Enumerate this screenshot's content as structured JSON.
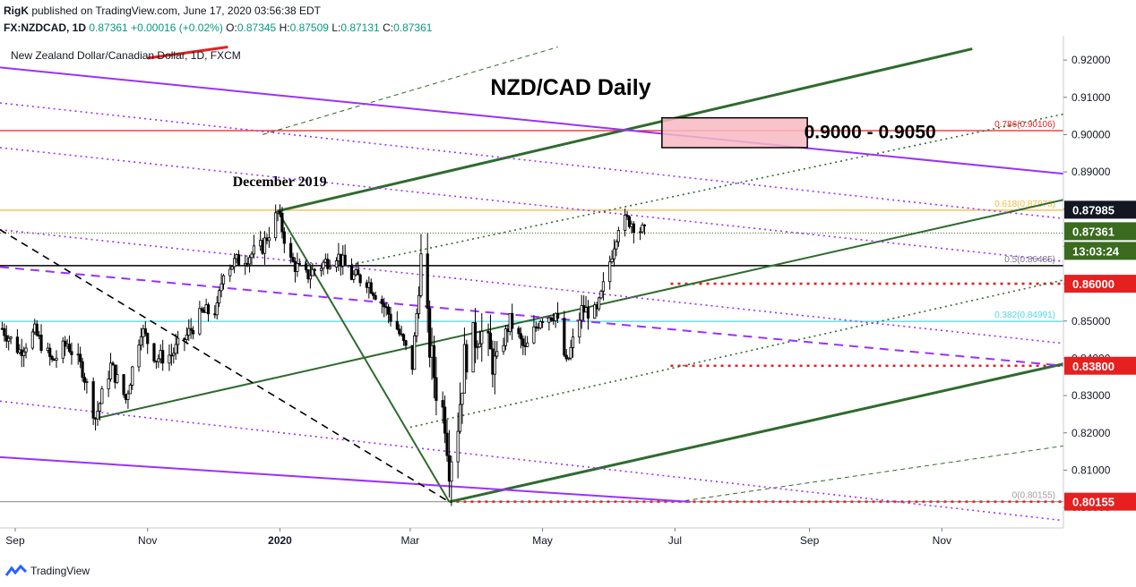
{
  "header": {
    "publisher_name": "RigK",
    "published_text": " published on TradingView.com, June 17, 2020 03:56:38 EDT",
    "symbol": "FX:NZDCAD, 1D",
    "last": "0.87361",
    "change": "+0.00016 (+0.02%)",
    "o_label": "O:",
    "o": "0.87345",
    "h_label": "H:",
    "h": "0.87509",
    "l_label": "L:",
    "l": "0.87131",
    "c_label": "C:",
    "c": "0.87361"
  },
  "footer": {
    "brand": "TradingView",
    "logo_icon": "tradingview-logo-icon"
  },
  "colors": {
    "green": "#2e6b2e",
    "purple": "#9b30ff",
    "red": "#e5201f",
    "orange": "#f5b942",
    "cyan": "#4dd8e0",
    "gray": "#9e9e9e",
    "price_box": "#131722",
    "last_box": "#3a6b1f"
  },
  "chart_data": {
    "type": "candlestick",
    "title": "NZD/CAD Daily",
    "subtitle": "New Zealand Dollar/Canadian Dollar, 1D, FXCM",
    "ylim": [
      0.7945,
      0.9265
    ],
    "y_ticks": [
      "0.92000",
      "0.91000",
      "0.90000",
      "0.89000",
      "0.88000",
      "0.87000",
      "0.86000",
      "0.85000",
      "0.84000",
      "0.83000",
      "0.82000",
      "0.81000",
      "0.80000"
    ],
    "y_tick_values": [
      0.92,
      0.91,
      0.9,
      0.89,
      0.88,
      0.87,
      0.86,
      0.85,
      0.84,
      0.83,
      0.82,
      0.81,
      0.8
    ],
    "x_ticks": [
      {
        "label": "Sep",
        "date": "2019-09-01"
      },
      {
        "label": "Nov",
        "date": "2019-11-01"
      },
      {
        "label": "2020",
        "date": "2020-01-01"
      },
      {
        "label": "Mar",
        "date": "2020-03-01"
      },
      {
        "label": "May",
        "date": "2020-05-01"
      },
      {
        "label": "Jul",
        "date": "2020-07-01"
      },
      {
        "label": "Sep",
        "date": "2020-09-01"
      },
      {
        "label": "Nov",
        "date": "2020-11-01"
      }
    ],
    "x_range": [
      "2019-08-25",
      "2020-12-27"
    ],
    "price_path": [
      [
        "2019-08-26",
        0.848
      ],
      [
        "2019-09-03",
        0.842
      ],
      [
        "2019-09-10",
        0.847
      ],
      [
        "2019-09-18",
        0.839
      ],
      [
        "2019-09-25",
        0.844
      ],
      [
        "2019-10-02",
        0.837
      ],
      [
        "2019-10-08",
        0.824
      ],
      [
        "2019-10-15",
        0.838
      ],
      [
        "2019-10-22",
        0.829
      ],
      [
        "2019-10-29",
        0.848
      ],
      [
        "2019-11-05",
        0.84
      ],
      [
        "2019-11-12",
        0.841
      ],
      [
        "2019-11-19",
        0.846
      ],
      [
        "2019-11-26",
        0.852
      ],
      [
        "2019-12-03",
        0.853
      ],
      [
        "2019-12-06",
        0.864
      ],
      [
        "2019-12-12",
        0.866
      ],
      [
        "2019-12-19",
        0.868
      ],
      [
        "2019-12-24",
        0.87
      ],
      [
        "2019-12-31",
        0.879
      ],
      [
        "2020-01-06",
        0.866
      ],
      [
        "2020-01-13",
        0.862
      ],
      [
        "2020-01-20",
        0.865
      ],
      [
        "2020-01-27",
        0.868
      ],
      [
        "2020-02-03",
        0.862
      ],
      [
        "2020-02-10",
        0.861
      ],
      [
        "2020-02-17",
        0.855
      ],
      [
        "2020-02-24",
        0.848
      ],
      [
        "2020-03-02",
        0.838
      ],
      [
        "2020-03-06",
        0.866
      ],
      [
        "2020-03-10",
        0.843
      ],
      [
        "2020-03-13",
        0.832
      ],
      [
        "2020-03-17",
        0.824
      ],
      [
        "2020-03-19",
        0.812
      ],
      [
        "2020-03-23",
        0.823
      ],
      [
        "2020-03-26",
        0.84
      ],
      [
        "2020-04-02",
        0.848
      ],
      [
        "2020-04-09",
        0.838
      ],
      [
        "2020-04-16",
        0.85
      ],
      [
        "2020-04-23",
        0.842
      ],
      [
        "2020-04-30",
        0.851
      ],
      [
        "2020-05-07",
        0.852
      ],
      [
        "2020-05-12",
        0.838
      ],
      [
        "2020-05-19",
        0.853
      ],
      [
        "2020-05-26",
        0.852
      ],
      [
        "2020-06-01",
        0.866
      ],
      [
        "2020-06-05",
        0.876
      ],
      [
        "2020-06-10",
        0.877
      ],
      [
        "2020-06-17",
        0.8736
      ]
    ],
    "levels": [
      {
        "label": "0.786(0.90106)",
        "value": 0.90106,
        "color": "#e5201f"
      },
      {
        "label": "0.618(0.87973)",
        "value": 0.87973,
        "color": "#f5b942"
      },
      {
        "label": "0.5(0.86485)",
        "value": 0.86485,
        "color": "#000000"
      },
      {
        "label": "0.382(0.84991)",
        "value": 0.84991,
        "color": "#4dd8e0"
      },
      {
        "label": "0(0.80155)",
        "value": 0.80155,
        "color": "#9e9e9e"
      }
    ],
    "red_dotted_levels": [
      0.86,
      0.838,
      0.80155
    ],
    "price_labels": [
      {
        "text": "0.87985",
        "value": 0.87985,
        "kind": "marker"
      },
      {
        "text": "0.87361",
        "value": 0.87361,
        "kind": "last"
      },
      {
        "text": "13:03:24",
        "value": 0.87361,
        "kind": "countdown"
      },
      {
        "text": "0.86000",
        "value": 0.86,
        "kind": "red"
      },
      {
        "text": "0.83800",
        "value": 0.838,
        "kind": "red"
      },
      {
        "text": "0.80155",
        "value": 0.80155,
        "kind": "red"
      }
    ],
    "annotations": [
      {
        "text": "December 2019",
        "date": "2019-12-31",
        "value": 0.8795
      },
      {
        "text": "0.9000 - 0.9050",
        "date": "2020-09-01",
        "value": 0.9005
      }
    ],
    "target_zone": {
      "date_from": "2020-06-25",
      "date_to": "2020-08-31",
      "y_from": 0.8965,
      "y_to": 0.9045
    },
    "trend_lines": [
      {
        "style": "green-thick",
        "points": [
          [
            "2019-12-31",
            0.8795
          ],
          [
            "2020-11-15",
            0.923
          ]
        ]
      },
      {
        "style": "green",
        "points": [
          [
            "2019-12-31",
            0.8795
          ],
          [
            "2020-03-19",
            0.8015
          ]
        ]
      },
      {
        "style": "green",
        "points": [
          [
            "2019-10-09",
            0.824
          ],
          [
            "2020-12-27",
            0.8825
          ]
        ]
      },
      {
        "style": "green-thick",
        "points": [
          [
            "2020-03-19",
            0.8015
          ],
          [
            "2020-12-27",
            0.8385
          ]
        ]
      },
      {
        "style": "green-dotted",
        "points": [
          [
            "2020-03-01",
            0.8215
          ],
          [
            "2020-12-27",
            0.861
          ]
        ]
      },
      {
        "style": "green-dotted",
        "points": [
          [
            "2020-01-29",
            0.8645
          ],
          [
            "2020-12-27",
            0.9055
          ]
        ]
      },
      {
        "style": "green-dashed-thin",
        "points": [
          [
            "2019-12-24",
            0.9
          ],
          [
            "2020-05-08",
            0.9235
          ]
        ]
      },
      {
        "style": "green-dashed-thin",
        "points": [
          [
            "2020-07-02",
            0.8015
          ],
          [
            "2020-12-27",
            0.8165
          ]
        ]
      },
      {
        "style": "purple",
        "points": [
          [
            "2019-08-25",
            0.918
          ],
          [
            "2020-12-27",
            0.8895
          ]
        ]
      },
      {
        "style": "purple",
        "points": [
          [
            "2019-08-25",
            0.8135
          ],
          [
            "2020-07-08",
            0.8015
          ]
        ]
      },
      {
        "style": "purple-dotted",
        "points": [
          [
            "2019-08-25",
            0.9085
          ],
          [
            "2020-12-27",
            0.8775
          ]
        ]
      },
      {
        "style": "purple-dotted",
        "points": [
          [
            "2019-08-25",
            0.8965
          ],
          [
            "2020-12-27",
            0.866
          ]
        ]
      },
      {
        "style": "purple-dotted",
        "points": [
          [
            "2019-08-25",
            0.8745
          ],
          [
            "2020-12-27",
            0.844
          ]
        ]
      },
      {
        "style": "purple-dotted",
        "points": [
          [
            "2019-08-25",
            0.8285
          ],
          [
            "2020-12-27",
            0.7965
          ]
        ]
      },
      {
        "style": "purple-dashed",
        "points": [
          [
            "2019-08-25",
            0.8645
          ],
          [
            "2020-12-27",
            0.838
          ]
        ]
      },
      {
        "style": "black-dashed",
        "points": [
          [
            "2019-08-25",
            0.8745
          ],
          [
            "2020-03-19",
            0.8015
          ]
        ]
      },
      {
        "style": "red-short",
        "points": [
          [
            "2019-11-01",
            0.9205
          ],
          [
            "2019-12-08",
            0.9235
          ]
        ]
      }
    ]
  }
}
